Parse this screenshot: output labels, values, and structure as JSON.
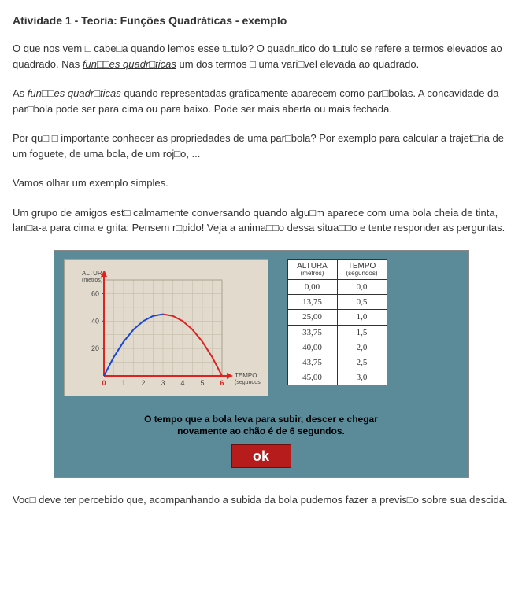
{
  "title": "Atividade 1 - Teoria: Funções Quadráticas - exemplo",
  "paragraphs": {
    "p1a": "O que nos vem □ cabe□a quando lemos esse t□tulo? O quadr□tico do t□tulo se refere a termos elevados ao quadrado. Nas ",
    "p1_link": "fun□□es quadr□ticas",
    "p1b": " um dos termos □ uma vari□vel elevada ao quadrado.",
    "p2a": "As",
    "p2_link": " fun□□es quadr□ticas",
    "p2b": " quando representadas graficamente aparecem como par□bolas. A concavidade da par□bola pode ser para cima ou para baixo. Pode ser mais aberta ou mais fechada.",
    "p3": "Por qu□ □ importante conhecer as propriedades de uma par□bola? Por exemplo para calcular a trajet□ria de um foguete, de uma bola, de um roj□o, ...",
    "p4": "Vamos olhar um exemplo simples.",
    "p5": "Um grupo de amigos est□ calmamente conversando quando algu□m aparece com uma bola cheia de tinta, lan□a-a para cima e grita: Pensem r□pido! Veja a anima□□o dessa situa□□o e tente responder as perguntas.",
    "p6": "Voc□ deve ter percebido que, acompanhando a subida da bola pudemos fazer a previs□o sobre sua descida."
  },
  "chart": {
    "y_label": "ALTURA",
    "y_unit": "(metros)",
    "x_label": "TEMPO",
    "x_unit": "(segundos)",
    "y_ticks": [
      20,
      40,
      60
    ],
    "x_ticks": [
      0,
      1,
      2,
      3,
      4,
      5,
      6
    ],
    "x_min": 0,
    "x_max": 6,
    "y_min": 0,
    "y_max": 70,
    "bg_color": "#e2dbcd",
    "grid_color": "#c5bdaa",
    "axis_color": "#d22",
    "curve_points": [
      [
        0,
        0
      ],
      [
        0.5,
        13.75
      ],
      [
        1,
        25
      ],
      [
        1.5,
        33.75
      ],
      [
        2,
        40
      ],
      [
        2.5,
        43.75
      ],
      [
        3,
        45
      ],
      [
        3.5,
        43.75
      ],
      [
        4,
        40
      ],
      [
        4.5,
        33.75
      ],
      [
        5,
        25
      ],
      [
        5.5,
        13.75
      ],
      [
        6,
        0
      ]
    ],
    "curve_color_up": "#1946d4",
    "curve_color_down": "#d22",
    "line_width": 2
  },
  "table": {
    "col1_header": "ALTURA",
    "col1_unit": "(metros)",
    "col2_header": "TEMPO",
    "col2_unit": "(segundos)",
    "rows": [
      [
        "0,00",
        "0,0"
      ],
      [
        "13,75",
        "0,5"
      ],
      [
        "25,00",
        "1,0"
      ],
      [
        "33,75",
        "1,5"
      ],
      [
        "40,00",
        "2,0"
      ],
      [
        "43,75",
        "2,5"
      ],
      [
        "45,00",
        "3,0"
      ]
    ]
  },
  "panel": {
    "bg_color": "#5b8a99",
    "message1": "O tempo que a bola leva para subir, descer e chegar",
    "message2": "novamente ao chão é de 6 segundos.",
    "ok_label": "ok",
    "ok_bg": "#b71c1c"
  }
}
